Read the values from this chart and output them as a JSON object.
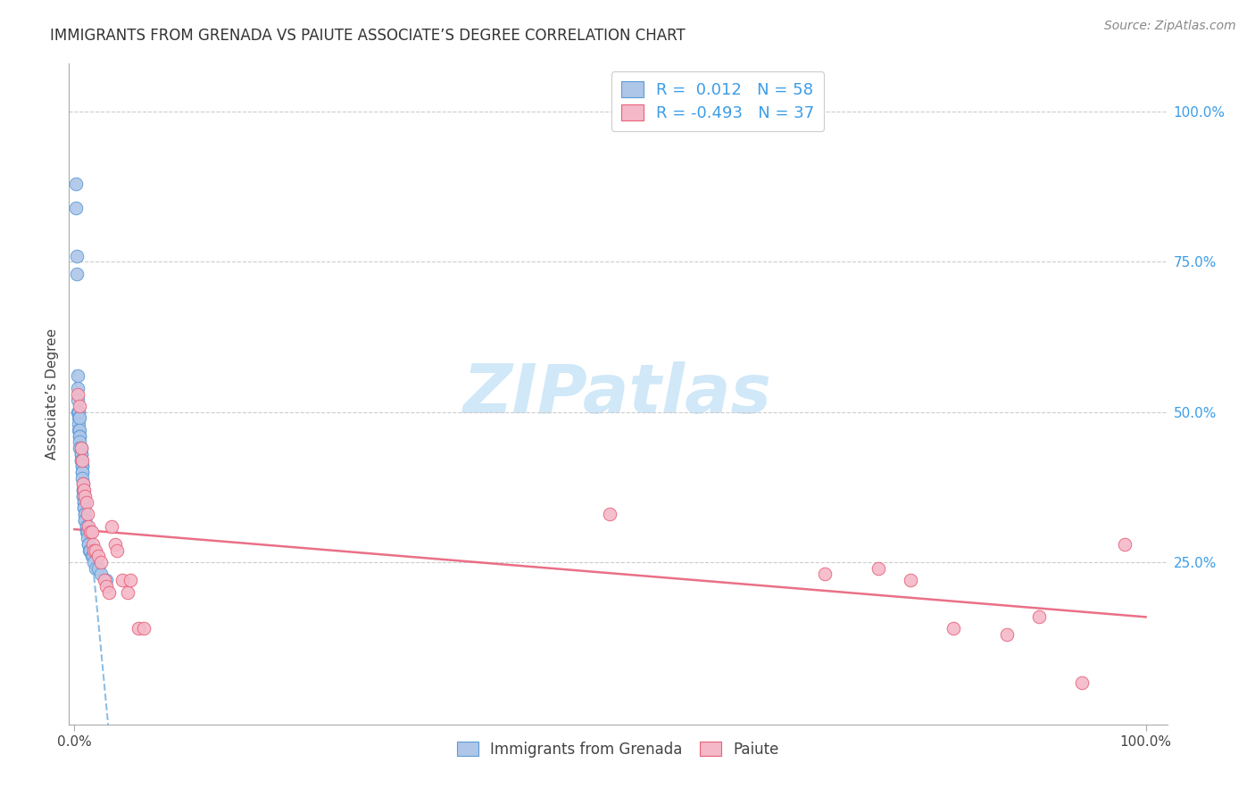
{
  "title": "IMMIGRANTS FROM GRENADA VS PAIUTE ASSOCIATE’S DEGREE CORRELATION CHART",
  "source": "Source: ZipAtlas.com",
  "ylabel": "Associate’s Degree",
  "right_yticks": [
    "100.0%",
    "75.0%",
    "50.0%",
    "25.0%"
  ],
  "right_ytick_vals": [
    1.0,
    0.75,
    0.5,
    0.25
  ],
  "legend_label1": "Immigrants from Grenada",
  "legend_label2": "Paiute",
  "legend_r1": "R =  0.012",
  "legend_n1": "N = 58",
  "legend_r2": "R = -0.493",
  "legend_n2": "N = 37",
  "blue_fill": "#aec6e8",
  "blue_edge": "#5b9bd5",
  "pink_fill": "#f4b8c8",
  "pink_edge": "#e8607a",
  "blue_line_color": "#7ab3e0",
  "pink_line_color": "#e8607a",
  "r_color": "#3b9de8",
  "watermark_color": "#d0e8f8",
  "blue_x": [
    0.001,
    0.001,
    0.002,
    0.002,
    0.003,
    0.003,
    0.003,
    0.003,
    0.004,
    0.004,
    0.004,
    0.004,
    0.004,
    0.005,
    0.005,
    0.005,
    0.005,
    0.005,
    0.005,
    0.006,
    0.006,
    0.006,
    0.006,
    0.006,
    0.007,
    0.007,
    0.007,
    0.007,
    0.007,
    0.008,
    0.008,
    0.008,
    0.008,
    0.008,
    0.009,
    0.009,
    0.009,
    0.009,
    0.01,
    0.01,
    0.01,
    0.01,
    0.011,
    0.011,
    0.011,
    0.012,
    0.012,
    0.013,
    0.013,
    0.014,
    0.015,
    0.016,
    0.017,
    0.018,
    0.02,
    0.022,
    0.025,
    0.03
  ],
  "blue_y": [
    0.88,
    0.84,
    0.76,
    0.73,
    0.56,
    0.54,
    0.52,
    0.5,
    0.5,
    0.5,
    0.49,
    0.48,
    0.47,
    0.49,
    0.47,
    0.46,
    0.46,
    0.45,
    0.44,
    0.44,
    0.43,
    0.43,
    0.42,
    0.42,
    0.41,
    0.41,
    0.4,
    0.4,
    0.39,
    0.38,
    0.37,
    0.37,
    0.36,
    0.36,
    0.35,
    0.35,
    0.34,
    0.34,
    0.33,
    0.33,
    0.32,
    0.32,
    0.31,
    0.31,
    0.3,
    0.3,
    0.29,
    0.28,
    0.28,
    0.27,
    0.27,
    0.26,
    0.26,
    0.25,
    0.24,
    0.24,
    0.23,
    0.22
  ],
  "pink_x": [
    0.003,
    0.005,
    0.006,
    0.007,
    0.008,
    0.009,
    0.01,
    0.011,
    0.012,
    0.013,
    0.015,
    0.016,
    0.017,
    0.018,
    0.02,
    0.022,
    0.025,
    0.028,
    0.03,
    0.032,
    0.035,
    0.038,
    0.04,
    0.045,
    0.05,
    0.052,
    0.06,
    0.065,
    0.5,
    0.7,
    0.75,
    0.78,
    0.82,
    0.87,
    0.9,
    0.94,
    0.98
  ],
  "pink_y": [
    0.53,
    0.51,
    0.44,
    0.42,
    0.38,
    0.37,
    0.36,
    0.35,
    0.33,
    0.31,
    0.3,
    0.3,
    0.28,
    0.27,
    0.27,
    0.26,
    0.25,
    0.22,
    0.21,
    0.2,
    0.31,
    0.28,
    0.27,
    0.22,
    0.2,
    0.22,
    0.14,
    0.14,
    0.33,
    0.23,
    0.24,
    0.22,
    0.14,
    0.13,
    0.16,
    0.05,
    0.28
  ]
}
